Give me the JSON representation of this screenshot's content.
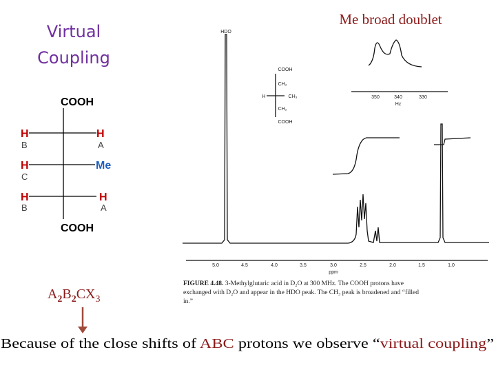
{
  "title": {
    "lines": [
      "Virtual",
      "Coupling"
    ]
  },
  "annotation": "Me broad doublet",
  "structure": {
    "top": "COOH",
    "bottom": "COOH",
    "rows": [
      {
        "left": {
          "atom": "H",
          "label": "B"
        },
        "right": {
          "atom": "H",
          "label": "A"
        }
      },
      {
        "left": {
          "atom": "H",
          "label": "C"
        },
        "right": {
          "atom": "Me"
        }
      },
      {
        "left": {
          "atom": "H",
          "label": "B"
        },
        "right": {
          "atom": "H",
          "label": "A"
        }
      }
    ]
  },
  "formula": [
    {
      "main": "A",
      "sub": "2"
    },
    {
      "main": "B",
      "sub": "2"
    },
    {
      "main": "C"
    },
    {
      "main": "X",
      "sub": "3"
    }
  ],
  "spectrum": {
    "peak_label": "HDO",
    "x_ticks": [
      "5.0",
      "4.5",
      "4.0",
      "3.5",
      "3.0",
      "2.5",
      "2.0",
      "1.5",
      "1.0"
    ],
    "x_unit": "ppm",
    "inset": {
      "ticks": [
        "350",
        "340",
        "330"
      ],
      "unit": "Hz"
    },
    "molecule": {
      "top": "COOH",
      "upper": "CH₂",
      "left": "H",
      "right": "CH₃",
      "lower": "CH₂",
      "bottom": "COOH"
    },
    "caption": {
      "figure": "FIGURE 4.48.",
      "lines": [
        "3-Methylglutaric acid in D₂O at 300 MHz. The COOH protons have",
        "exchanged with D₂O and appear in the HDO peak. The CH₃ peak is broadened and “filled",
        "in.”"
      ]
    }
  },
  "conclusion": [
    "Because of the close shifts of ",
    "ABC",
    " protons we observe “",
    "virtual coupling",
    "”"
  ]
}
